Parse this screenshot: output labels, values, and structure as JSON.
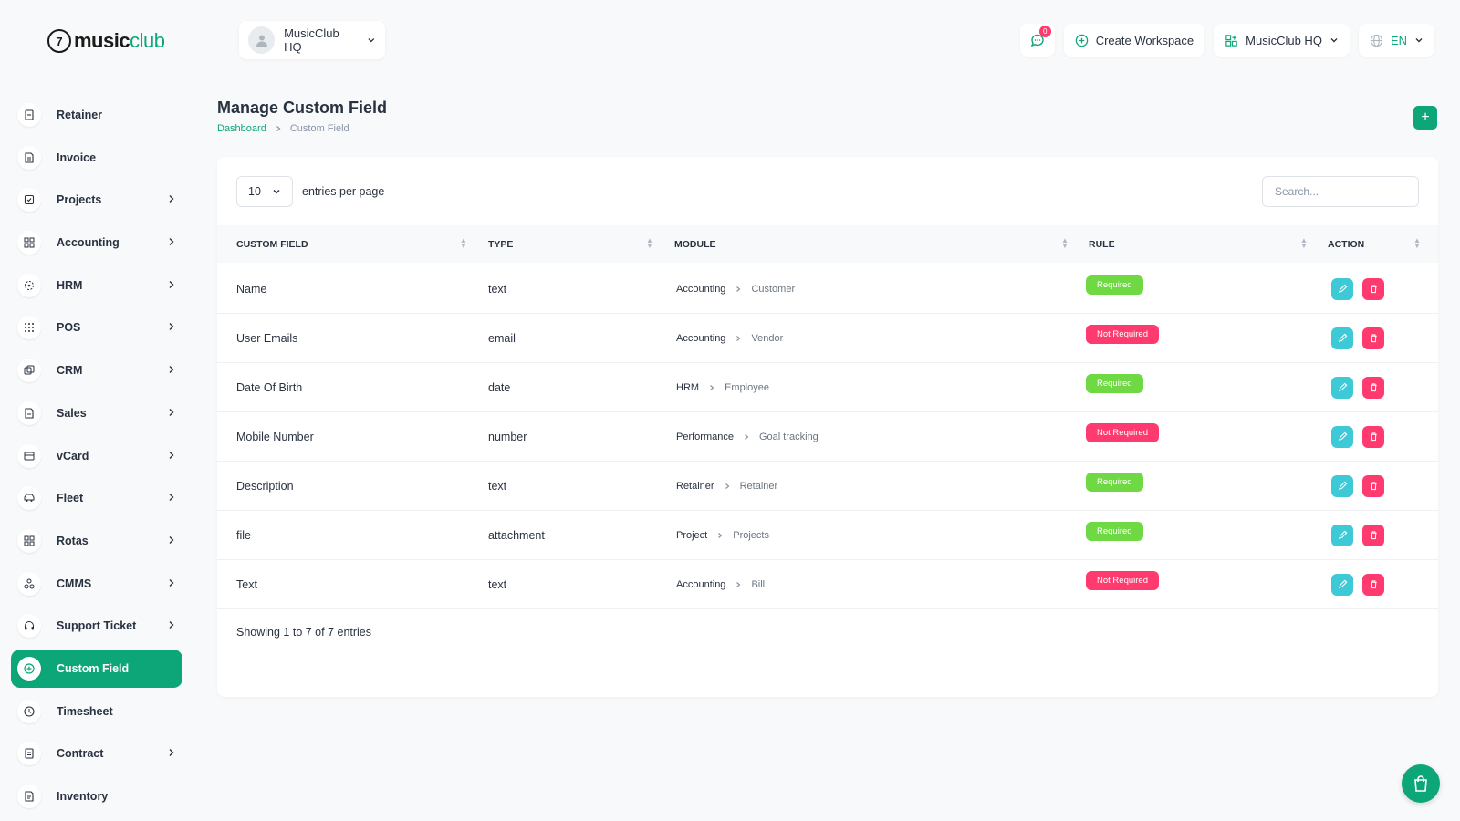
{
  "brand": {
    "logo_mark": "7",
    "name_bold": "music",
    "name_light": "club"
  },
  "header": {
    "workspace_switch": "MusicClub HQ",
    "notifications_count": "0",
    "create_workspace": "Create Workspace",
    "workspace_menu": "MusicClub HQ",
    "language": "EN"
  },
  "sidebar": {
    "items": [
      {
        "label": "Retainer",
        "icon": "retainer-icon",
        "has_arrow": false
      },
      {
        "label": "Invoice",
        "icon": "invoice-icon",
        "has_arrow": false
      },
      {
        "label": "Projects",
        "icon": "projects-icon",
        "has_arrow": true
      },
      {
        "label": "Accounting",
        "icon": "accounting-icon",
        "has_arrow": true
      },
      {
        "label": "HRM",
        "icon": "hrm-icon",
        "has_arrow": true
      },
      {
        "label": "POS",
        "icon": "pos-icon",
        "has_arrow": true
      },
      {
        "label": "CRM",
        "icon": "crm-icon",
        "has_arrow": true
      },
      {
        "label": "Sales",
        "icon": "sales-icon",
        "has_arrow": true
      },
      {
        "label": "vCard",
        "icon": "vcard-icon",
        "has_arrow": true
      },
      {
        "label": "Fleet",
        "icon": "fleet-icon",
        "has_arrow": true
      },
      {
        "label": "Rotas",
        "icon": "rotas-icon",
        "has_arrow": true
      },
      {
        "label": "CMMS",
        "icon": "cmms-icon",
        "has_arrow": true
      },
      {
        "label": "Support Ticket",
        "icon": "support-icon",
        "has_arrow": true
      },
      {
        "label": "Custom Field",
        "icon": "custom-field-icon",
        "has_arrow": false,
        "active": true
      },
      {
        "label": "Timesheet",
        "icon": "timesheet-icon",
        "has_arrow": false
      },
      {
        "label": "Contract",
        "icon": "contract-icon",
        "has_arrow": true
      },
      {
        "label": "Inventory",
        "icon": "inventory-icon",
        "has_arrow": false
      }
    ]
  },
  "page": {
    "title": "Manage Custom Field",
    "breadcrumb_home": "Dashboard",
    "breadcrumb_current": "Custom Field",
    "add_label": "+"
  },
  "table": {
    "per_page_value": "10",
    "per_page_label": "entries per page",
    "search_placeholder": "Search...",
    "columns": [
      "CUSTOM FIELD",
      "TYPE",
      "MODULE",
      "RULE",
      "ACTION"
    ],
    "rows": [
      {
        "field": "Name",
        "type": "text",
        "module": "Accounting",
        "sub": "Customer",
        "rule": "Required",
        "required": true
      },
      {
        "field": "User Emails",
        "type": "email",
        "module": "Accounting",
        "sub": "Vendor",
        "rule": "Not Required",
        "required": false
      },
      {
        "field": "Date Of Birth",
        "type": "date",
        "module": "HRM",
        "sub": "Employee",
        "rule": "Required",
        "required": true
      },
      {
        "field": "Mobile Number",
        "type": "number",
        "module": "Performance",
        "sub": "Goal tracking",
        "rule": "Not Required",
        "required": false
      },
      {
        "field": "Description",
        "type": "text",
        "module": "Retainer",
        "sub": "Retainer",
        "rule": "Required",
        "required": true
      },
      {
        "field": "file",
        "type": "attachment",
        "module": "Project",
        "sub": "Projects",
        "rule": "Required",
        "required": true
      },
      {
        "field": "Text",
        "type": "text",
        "module": "Accounting",
        "sub": "Bill",
        "rule": "Not Required",
        "required": false
      }
    ],
    "footer": "Showing 1 to 7 of 7 entries"
  },
  "colors": {
    "accent": "#0ca678",
    "danger": "#ff3a6e",
    "info": "#3ec9d6",
    "success": "#6fd943"
  }
}
